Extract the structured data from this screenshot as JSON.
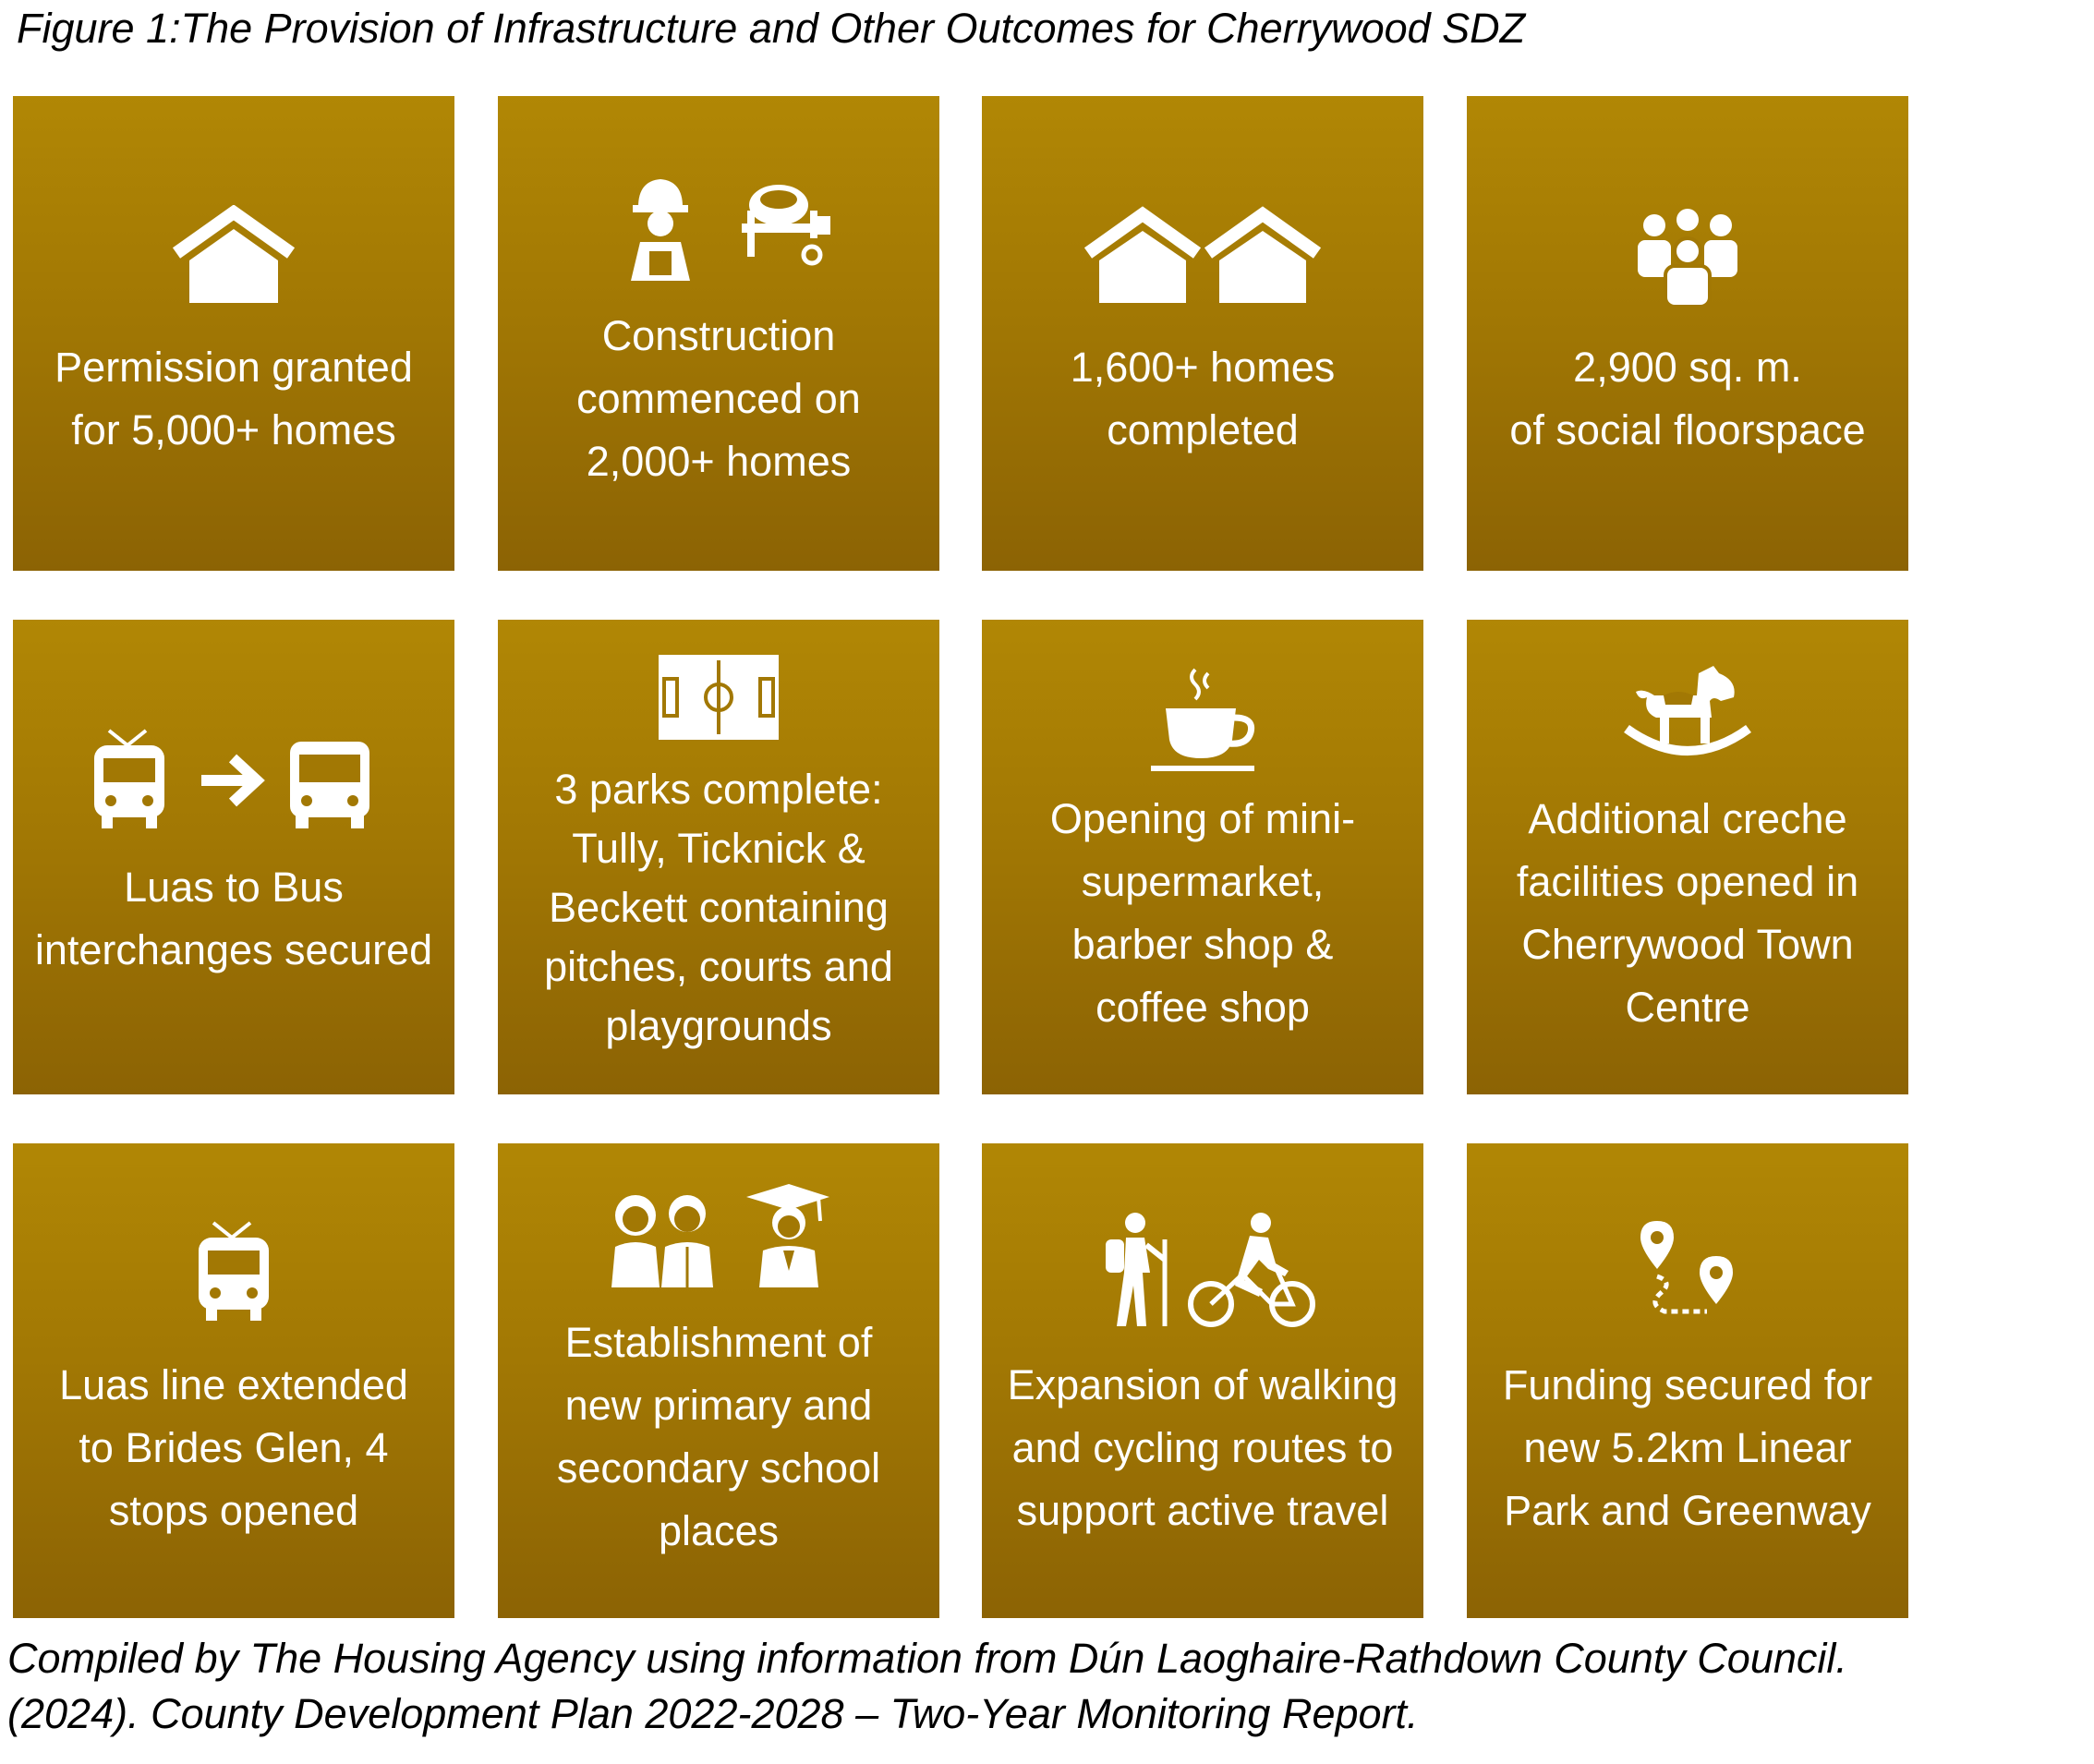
{
  "figure": {
    "caption": "Figure 1:The Provision of Infrastructure and Other Outcomes for Cherrywood SDZ",
    "tile_color": "#a27804",
    "text_color": "#ffffff"
  },
  "tiles": [
    {
      "icon": "house-icon",
      "lines": [
        "Permission granted",
        "for 5,000+ homes"
      ]
    },
    {
      "icon": "construction-worker-mixer-icon",
      "lines": [
        "Construction",
        "commenced on",
        "2,000+ homes"
      ]
    },
    {
      "icon": "two-houses-icon",
      "lines": [
        "1,600+ homes",
        "completed"
      ]
    },
    {
      "icon": "group-people-icon",
      "lines": [
        "2,900 sq. m.",
        "of social floorspace"
      ]
    },
    {
      "icon": "tram-to-bus-icon",
      "lines": [
        "Luas to Bus",
        "interchanges secured"
      ]
    },
    {
      "icon": "football-pitch-icon",
      "lines": [
        "3 parks complete:",
        "Tully, Ticknick &",
        "Beckett containing",
        "pitches, courts and",
        "playgrounds"
      ]
    },
    {
      "icon": "coffee-cup-icon",
      "lines": [
        "Opening of mini-",
        "supermarket,",
        "barber shop &",
        "coffee shop"
      ]
    },
    {
      "icon": "rocking-horse-icon",
      "lines": [
        "Additional creche",
        "facilities opened in",
        "Cherrywood Town",
        "Centre"
      ]
    },
    {
      "icon": "tram-icon",
      "lines": [
        "Luas line extended",
        "to Brides Glen, 4",
        "stops opened"
      ]
    },
    {
      "icon": "students-graduate-icon",
      "lines": [
        "Establishment of",
        "new primary and",
        "secondary school",
        "places"
      ]
    },
    {
      "icon": "hiker-cyclist-icon",
      "lines": [
        "Expansion of walking",
        "and cycling routes to",
        "support active travel"
      ]
    },
    {
      "icon": "map-route-pins-icon",
      "lines": [
        "Funding secured for",
        "new 5.2km Linear",
        "Park and Greenway"
      ]
    }
  ],
  "source": {
    "lines": [
      "Compiled by The Housing Agency using information from Dún Laoghaire-Rathdown County Council.",
      "(2024). County Development Plan 2022-2028 – Two-Year Monitoring Report."
    ]
  }
}
